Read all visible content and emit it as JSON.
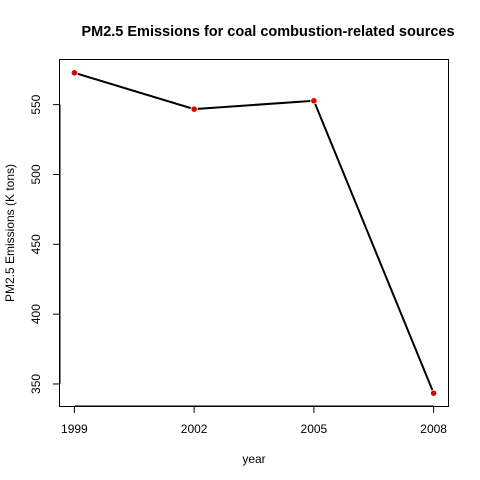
{
  "chart_data": {
    "type": "line",
    "title": "PM2.5 Emissions for coal combustion-related sources",
    "xlabel": "year",
    "ylabel": "PM2.5 Emissions (K tons)",
    "x": [
      1999,
      2002,
      2005,
      2008
    ],
    "series": [
      {
        "values": [
          572.8,
          546.8,
          552.8,
          343.4
        ]
      }
    ],
    "xticks": [
      "1999",
      "2002",
      "2005",
      "2008"
    ],
    "yticks": [
      350,
      400,
      450,
      500,
      550
    ],
    "xlim": [
      1999,
      2008
    ],
    "ylim": [
      343.4,
      572.8
    ],
    "grid": false,
    "legend": "none",
    "line_color": "#000000",
    "point_color": "#e00000"
  }
}
